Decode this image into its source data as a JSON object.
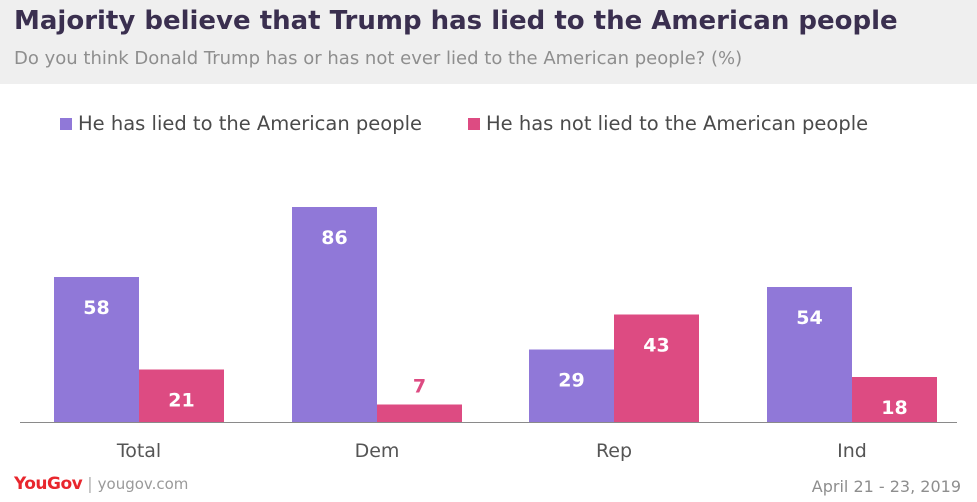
{
  "header": {
    "title": "Majority believe that Trump has lied to the American people",
    "subtitle": "Do you think Donald Trump has or has not ever lied to the American people? (%)"
  },
  "footer": {
    "brand": "YouGov",
    "separator": "|",
    "site": "yougov.com",
    "date": "April 21 - 23, 2019"
  },
  "colors": {
    "lied": "#9078d8",
    "not_lied": "#dd4b82"
  },
  "chart_data": {
    "type": "bar",
    "categories": [
      "Total",
      "Dem",
      "Rep",
      "Ind"
    ],
    "series": [
      {
        "name": "He has lied to the American people",
        "values": [
          58,
          86,
          29,
          54
        ],
        "color": "#9078d8"
      },
      {
        "name": "He has not lied to the American people",
        "values": [
          21,
          7,
          43,
          18
        ],
        "color": "#dd4b82"
      }
    ],
    "title": "Majority believe that Trump has lied to the American people",
    "subtitle": "Do you think Donald Trump has or has not ever lied to the American people? (%)",
    "xlabel": "",
    "ylabel": "",
    "ylim": [
      0,
      100
    ],
    "grid": false,
    "legend_position": "top-left",
    "data_labels": true
  }
}
